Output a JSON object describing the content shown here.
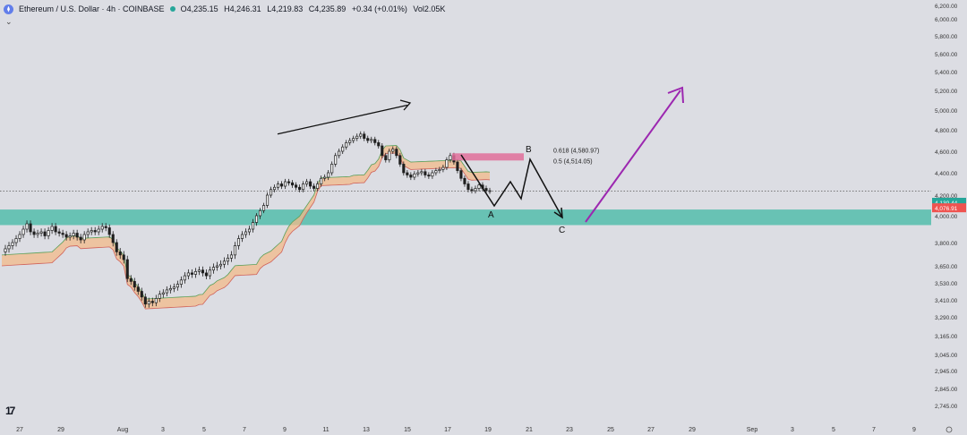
{
  "header": {
    "symbol": "Ethereum / U.S. Dollar · 4h · COINBASE",
    "open": "O4,235.15",
    "high": "H4,246.31",
    "low": "L4,219.83",
    "close": "C4,235.89",
    "change": "+0.34 (+0.01%)",
    "volume": "Vol2.05K"
  },
  "colors": {
    "background": "#dcdde3",
    "candle_up": "#ffffff",
    "candle_down": "#1e1e1e",
    "support_zone": "#5bbfae",
    "resistance_zone": "#e06f9a",
    "cloud_bull": "#f3b98a",
    "cloud_line_green": "#5aa05a",
    "cloud_line_red": "#d0625a",
    "arrow_purple": "#9c27b0",
    "price_label_green": "#26a69a",
    "price_label_red": "#ef5350"
  },
  "chart_data": {
    "type": "candlestick",
    "title": "Ethereum / U.S. Dollar · 4h · COINBASE",
    "y_ticks": [
      "6,200.00",
      "6,000.00",
      "5,800.00",
      "5,600.00",
      "5,400.00",
      "5,200.00",
      "5,000.00",
      "4,800.00",
      "4,600.00",
      "4,400.00",
      "4,200.00",
      "4,000.00",
      "3,800.00",
      "3,650.00",
      "3,530.00",
      "3,410.00",
      "3,290.00",
      "3,165.00",
      "3,045.00",
      "2,945.00",
      "2,845.00",
      "2,745.00"
    ],
    "x_ticks": [
      "27",
      "29",
      "Aug",
      "3",
      "5",
      "7",
      "9",
      "11",
      "13",
      "15",
      "17",
      "19",
      "21",
      "23",
      "25",
      "27",
      "29",
      "Sep",
      "3",
      "5",
      "7",
      "9"
    ],
    "price_labels": [
      {
        "text": "4,130.44",
        "value": 4130.44,
        "color": "green"
      },
      {
        "text": "4,076.91",
        "value": 4076.91,
        "color": "red"
      }
    ],
    "current_price": 4235.89,
    "support_zone": [
      3930,
      4060
    ],
    "resistance_zone": [
      4514.05,
      4580.97
    ],
    "fib_levels": [
      {
        "label": "0.618 (4,580.97)",
        "value": 4580.97
      },
      {
        "label": "0.5 (4,514.05)",
        "value": 4514.05
      }
    ],
    "wave_labels": [
      "A",
      "B",
      "C"
    ],
    "close_path": [
      3740,
      3760,
      3780,
      3800,
      3830,
      3860,
      3900,
      3940,
      3880,
      3860,
      3870,
      3880,
      3850,
      3890,
      3920,
      3880,
      3870,
      3860,
      3840,
      3850,
      3870,
      3840,
      3820,
      3860,
      3880,
      3890,
      3880,
      3900,
      3920,
      3910,
      3860,
      3800,
      3740,
      3720,
      3690,
      3560,
      3540,
      3500,
      3470,
      3430,
      3380,
      3400,
      3390,
      3420,
      3450,
      3460,
      3480,
      3490,
      3500,
      3520,
      3550,
      3580,
      3600,
      3590,
      3610,
      3620,
      3600,
      3580,
      3620,
      3640,
      3650,
      3660,
      3680,
      3700,
      3720,
      3780,
      3830,
      3860,
      3880,
      3900,
      3950,
      4000,
      4050,
      4100,
      4200,
      4250,
      4270,
      4300,
      4280,
      4320,
      4310,
      4290,
      4270,
      4250,
      4300,
      4320,
      4280,
      4260,
      4300,
      4350,
      4360,
      4400,
      4480,
      4560,
      4600,
      4640,
      4680,
      4700,
      4720,
      4740,
      4760,
      4720,
      4700,
      4710,
      4680,
      4650,
      4560,
      4520,
      4600,
      4620,
      4560,
      4480,
      4400,
      4380,
      4360,
      4390,
      4400,
      4410,
      4380,
      4370,
      4400,
      4420,
      4430,
      4450,
      4520,
      4560,
      4500,
      4420,
      4350,
      4300,
      4250,
      4240,
      4260,
      4290,
      4260,
      4240,
      4236
    ]
  }
}
